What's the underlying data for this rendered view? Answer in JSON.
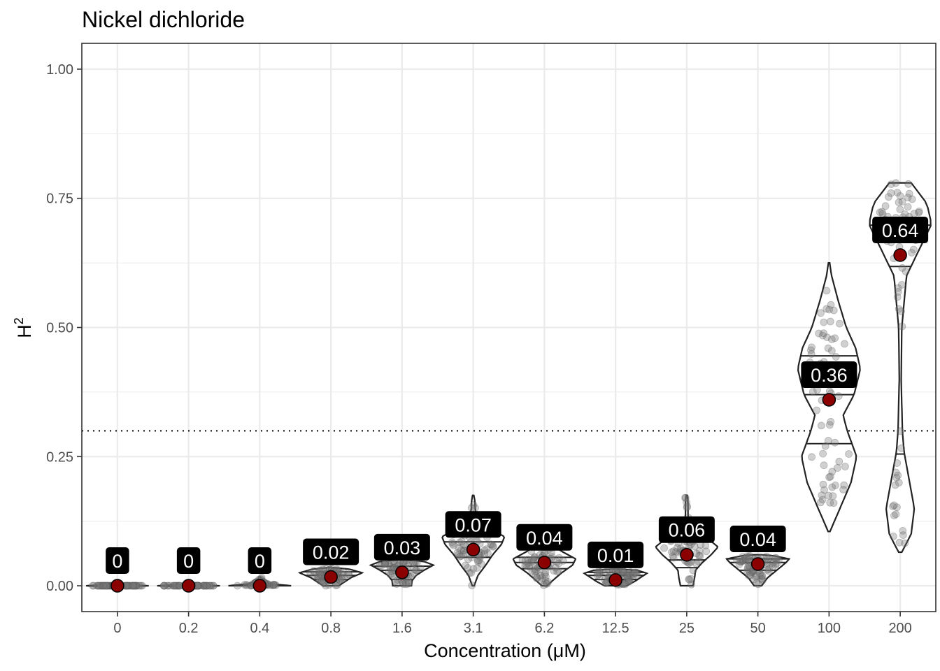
{
  "chart_data": {
    "type": "violin",
    "title": "Nickel dichloride",
    "xlabel": "Concentration (μM)",
    "ylabel_base": "H",
    "ylabel_sup": "2",
    "ylim": [
      -0.05,
      1.05
    ],
    "yticks": [
      0.0,
      0.25,
      0.5,
      0.75,
      1.0
    ],
    "ytick_labels": [
      "0.00",
      "0.25",
      "0.50",
      "0.75",
      "1.00"
    ],
    "threshold": 0.3,
    "grid": true,
    "mean_color": "#8b0000",
    "categories": [
      "0",
      "0.2",
      "0.4",
      "0.8",
      "1.6",
      "3.1",
      "6.2",
      "12.5",
      "25",
      "50",
      "100",
      "200"
    ],
    "means": [
      0.0,
      0.0,
      0.0,
      0.017,
      0.026,
      0.07,
      0.045,
      0.011,
      0.06,
      0.042,
      0.36,
      0.64
    ],
    "labels": [
      "0",
      "0",
      "0",
      "0.02",
      "0.03",
      "0.07",
      "0.04",
      "0.01",
      "0.06",
      "0.04",
      "0.36",
      "0.64"
    ],
    "distributions": [
      {
        "min": 0.0,
        "max": 0.0,
        "quartiles": [
          0.0,
          0.0,
          0.0
        ],
        "density": [
          [
            -0.002,
            0
          ],
          [
            0.0,
            1.0
          ],
          [
            0.002,
            0
          ]
        ]
      },
      {
        "min": 0.0,
        "max": 0.0,
        "quartiles": [
          0.0,
          0.0,
          0.0
        ],
        "density": [
          [
            -0.002,
            0
          ],
          [
            0.0,
            1.0
          ],
          [
            0.002,
            0
          ]
        ]
      },
      {
        "min": 0.0,
        "max": 0.017,
        "quartiles": [
          0.0,
          0.0,
          0.002
        ],
        "density": [
          [
            0.0,
            1.0
          ],
          [
            0.004,
            0.3
          ],
          [
            0.01,
            0.08
          ],
          [
            0.017,
            0.02
          ]
        ]
      },
      {
        "min": 0.0,
        "max": 0.035,
        "quartiles": [
          0.012,
          0.02,
          0.027
        ],
        "density": [
          [
            0.0,
            0.25
          ],
          [
            0.008,
            0.45
          ],
          [
            0.016,
            0.65
          ],
          [
            0.025,
            1.0
          ],
          [
            0.032,
            0.6
          ],
          [
            0.035,
            0.1
          ]
        ]
      },
      {
        "min": 0.0,
        "max": 0.05,
        "quartiles": [
          0.012,
          0.03,
          0.038
        ],
        "density": [
          [
            0.0,
            0.3
          ],
          [
            0.01,
            0.32
          ],
          [
            0.02,
            0.45
          ],
          [
            0.03,
            0.7
          ],
          [
            0.04,
            1.0
          ],
          [
            0.047,
            0.7
          ],
          [
            0.05,
            0.1
          ]
        ]
      },
      {
        "min": 0.0,
        "max": 0.175,
        "quartiles": [
          0.055,
          0.085,
          0.1
        ],
        "density": [
          [
            0.0,
            0.03
          ],
          [
            0.02,
            0.15
          ],
          [
            0.04,
            0.4
          ],
          [
            0.06,
            0.62
          ],
          [
            0.08,
            0.9
          ],
          [
            0.095,
            1.0
          ],
          [
            0.11,
            0.55
          ],
          [
            0.13,
            0.12
          ],
          [
            0.15,
            0.06
          ],
          [
            0.165,
            0.05
          ],
          [
            0.175,
            0.02
          ]
        ]
      },
      {
        "min": 0.0,
        "max": 0.085,
        "quartiles": [
          0.033,
          0.045,
          0.055
        ],
        "density": [
          [
            0.0,
            0.08
          ],
          [
            0.012,
            0.3
          ],
          [
            0.025,
            0.55
          ],
          [
            0.04,
            0.9
          ],
          [
            0.052,
            1.0
          ],
          [
            0.065,
            0.6
          ],
          [
            0.078,
            0.25
          ],
          [
            0.085,
            0.05
          ]
        ]
      },
      {
        "min": 0.0,
        "max": 0.032,
        "quartiles": [
          0.012,
          0.02,
          0.026
        ],
        "density": [
          [
            0.0,
            0.35
          ],
          [
            0.008,
            0.6
          ],
          [
            0.016,
            0.8
          ],
          [
            0.024,
            1.0
          ],
          [
            0.03,
            0.7
          ],
          [
            0.032,
            0.1
          ]
        ]
      },
      {
        "min": 0.0,
        "max": 0.175,
        "quartiles": [
          0.035,
          0.05,
          0.085
        ],
        "density": [
          [
            0.0,
            0.2
          ],
          [
            0.015,
            0.25
          ],
          [
            0.03,
            0.28
          ],
          [
            0.045,
            0.5
          ],
          [
            0.06,
            0.78
          ],
          [
            0.075,
            1.0
          ],
          [
            0.09,
            0.7
          ],
          [
            0.1,
            0.28
          ],
          [
            0.12,
            0.06
          ],
          [
            0.14,
            0.04
          ],
          [
            0.16,
            0.04
          ],
          [
            0.175,
            0.02
          ]
        ]
      },
      {
        "min": 0.0,
        "max": 0.06,
        "quartiles": [
          0.03,
          0.045,
          0.052
        ],
        "density": [
          [
            0.0,
            0.12
          ],
          [
            0.015,
            0.3
          ],
          [
            0.03,
            0.6
          ],
          [
            0.045,
            0.9
          ],
          [
            0.052,
            1.0
          ],
          [
            0.058,
            0.5
          ],
          [
            0.06,
            0.1
          ]
        ]
      },
      {
        "min": 0.105,
        "max": 0.625,
        "quartiles": [
          0.275,
          0.37,
          0.445
        ],
        "density": [
          [
            0.105,
            0.03
          ],
          [
            0.15,
            0.35
          ],
          [
            0.2,
            0.7
          ],
          [
            0.25,
            0.88
          ],
          [
            0.3,
            0.58
          ],
          [
            0.33,
            0.45
          ],
          [
            0.37,
            0.8
          ],
          [
            0.42,
            1.0
          ],
          [
            0.46,
            0.85
          ],
          [
            0.5,
            0.55
          ],
          [
            0.55,
            0.3
          ],
          [
            0.6,
            0.08
          ],
          [
            0.625,
            0.02
          ]
        ]
      },
      {
        "min": 0.065,
        "max": 0.78,
        "quartiles": [
          0.255,
          0.618,
          0.698
        ],
        "density": [
          [
            0.065,
            0.05
          ],
          [
            0.1,
            0.35
          ],
          [
            0.15,
            0.45
          ],
          [
            0.2,
            0.3
          ],
          [
            0.26,
            0.12
          ],
          [
            0.3,
            0.07
          ],
          [
            0.4,
            0.03
          ],
          [
            0.5,
            0.05
          ],
          [
            0.6,
            0.2
          ],
          [
            0.65,
            0.6
          ],
          [
            0.7,
            1.0
          ],
          [
            0.74,
            0.85
          ],
          [
            0.78,
            0.35
          ]
        ]
      }
    ]
  }
}
